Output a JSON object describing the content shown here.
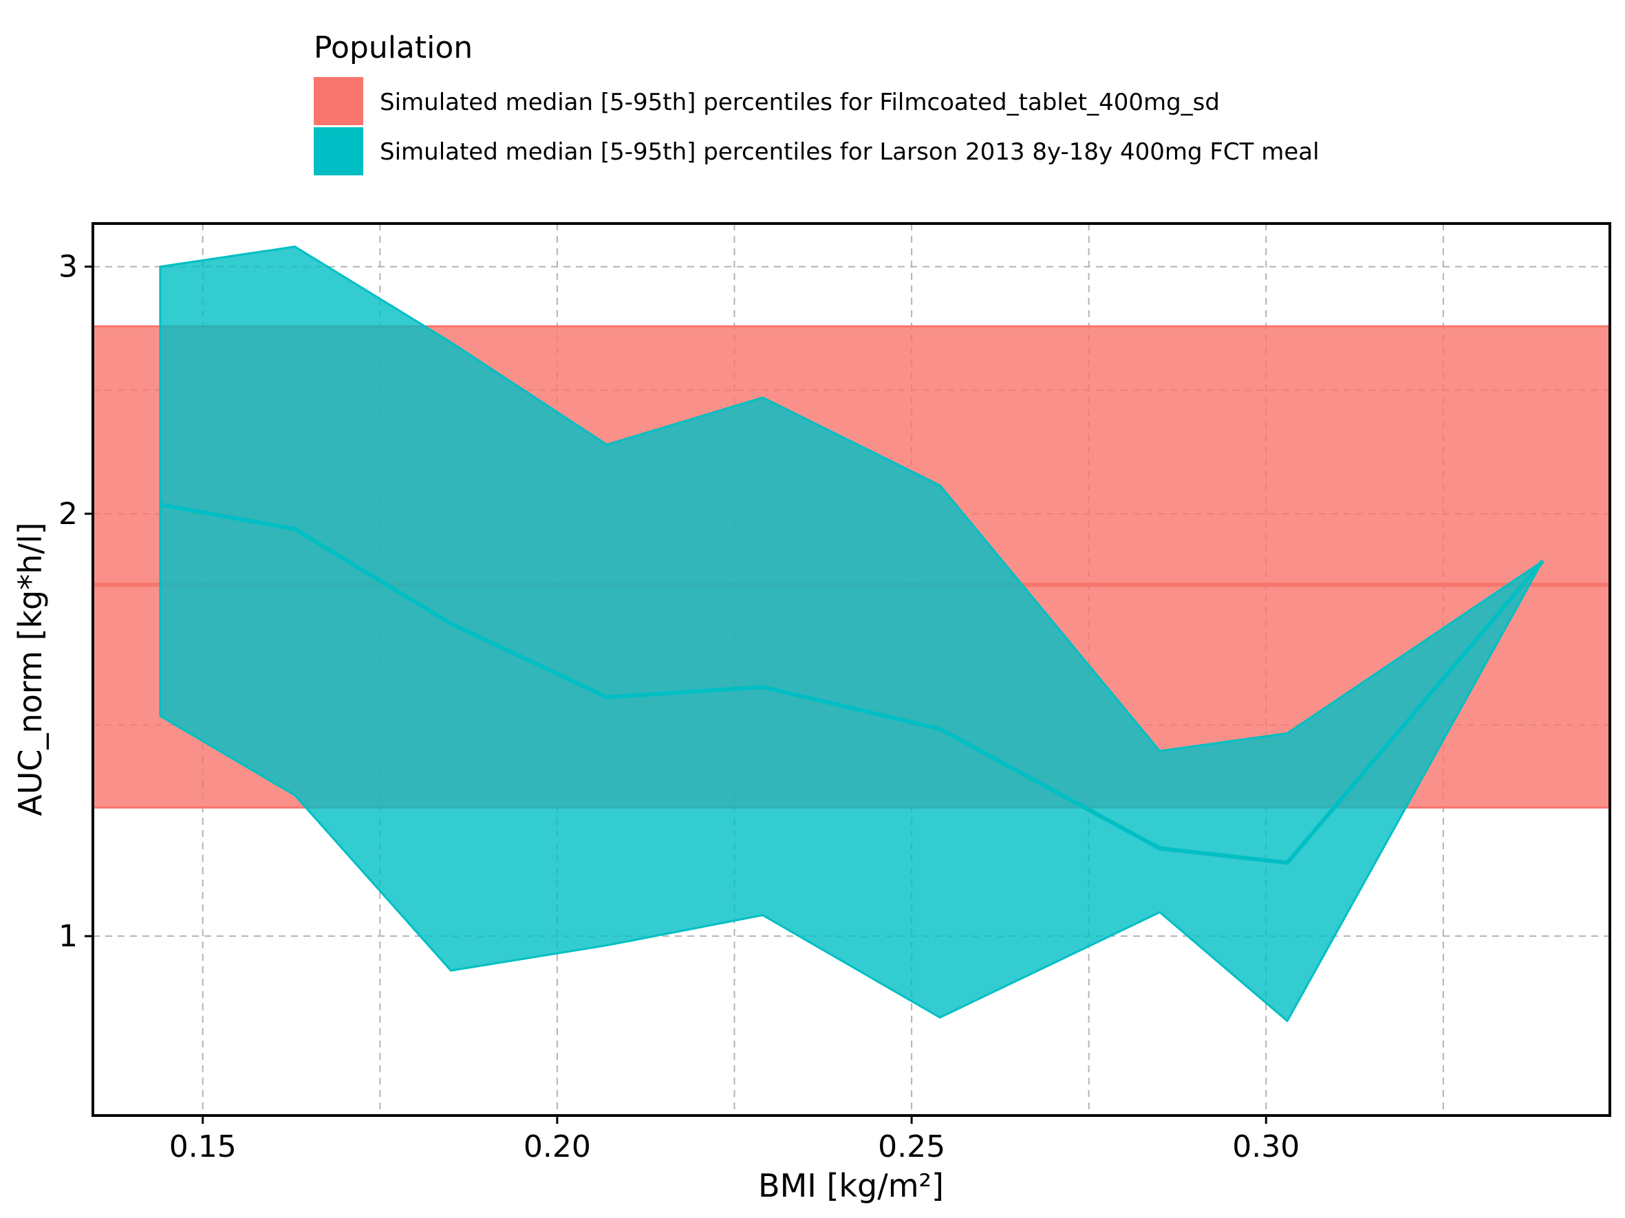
{
  "chart_data": {
    "type": "area",
    "title": "",
    "xlabel": "BMI [kg/m²]",
    "ylabel": "AUC_norm [kg*h/l]",
    "y_scale": "log",
    "xlim": [
      0.1345,
      0.3485
    ],
    "ylim": [
      0.745,
      3.22
    ],
    "x_ticks": [
      0.15,
      0.2,
      0.25,
      0.3
    ],
    "x_tick_labels": [
      "0.15",
      "0.20",
      "0.25",
      "0.30"
    ],
    "x_minor_ticks": [
      0.175,
      0.225,
      0.275,
      0.325
    ],
    "y_ticks": [
      1,
      2,
      3
    ],
    "y_tick_labels": [
      "1",
      "2",
      "3"
    ],
    "grid": true,
    "legend": {
      "title": "Population",
      "placement": "top",
      "entries": [
        "Simulated median [5-95th] percentiles for Filmcoated_tablet_400mg_sd",
        "Simulated median [5-95th] percentiles for Larson 2013 8y-18y 400mg FCT meal"
      ]
    },
    "series": [
      {
        "name": "Simulated median [5-95th] percentiles for Filmcoated_tablet_400mg_sd",
        "color": "#F8766D",
        "kind": "horizontal_band",
        "median": 1.78,
        "lower": 1.235,
        "upper": 2.72
      },
      {
        "name": "Simulated median [5-95th] percentiles for Larson 2013 8y-18y 400mg FCT meal",
        "color": "#00BFC4",
        "kind": "band",
        "x": [
          0.144,
          0.163,
          0.185,
          0.207,
          0.229,
          0.254,
          0.285,
          0.303,
          0.339
        ],
        "median": [
          2.03,
          1.95,
          1.67,
          1.48,
          1.505,
          1.405,
          1.155,
          1.128,
          1.85
        ],
        "lower": [
          1.435,
          1.26,
          0.945,
          0.985,
          1.035,
          0.875,
          1.04,
          0.87,
          1.85
        ],
        "upper": [
          3.0,
          3.1,
          2.65,
          2.24,
          2.42,
          2.095,
          1.355,
          1.395,
          1.85
        ]
      }
    ]
  }
}
